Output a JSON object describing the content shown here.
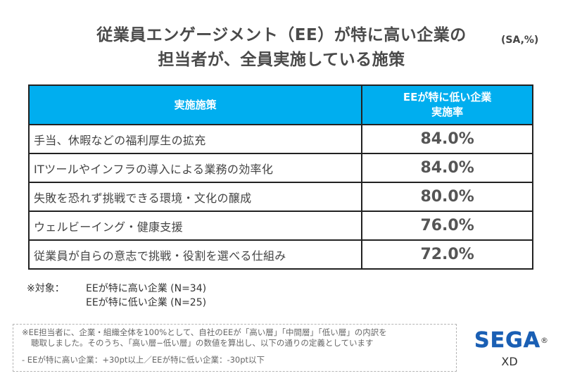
{
  "title": {
    "line1": "従業員エンゲージメント（EE）が特に高い企業の",
    "line2": "担当者が、全員実施している施策"
  },
  "unit_label": "(SA,%)",
  "table": {
    "headers": {
      "measure": "実施施策",
      "rate_line1": "EEが特に低い企業",
      "rate_line2": "実施率"
    },
    "header_color": "#00aeef",
    "rows": [
      {
        "measure": "手当、休暇などの福利厚生の拡充",
        "rate": "84.0%"
      },
      {
        "measure": "ITツールやインフラの導入による業務の効率化",
        "rate": "84.0%"
      },
      {
        "measure": "失敗を恐れず挑戦できる環境・文化の醸成",
        "rate": "80.0%"
      },
      {
        "measure": "ウェルビーイング・健康支援",
        "rate": "76.0%"
      },
      {
        "measure": "従業員が自らの意志で挑戦・役割を選べる仕組み",
        "rate": "72.0%"
      }
    ]
  },
  "targets": {
    "label": "※対象：",
    "items": [
      "EEが特に高い企業 (N=34)",
      "EEが特に低い企業 (N=25)"
    ]
  },
  "note": {
    "line1": "※EE担当者に、企業・組織全体を100%として、自社のEEが「高い層」「中間層」「低い層」の内訳を",
    "line2": "聴取しました。そのうち、「高い層−低い層」の数値を算出し、以下の通りの定義としています",
    "definition": "- EEが特に高い企業：+30pt以上／EEが特に低い企業：-30pt以下"
  },
  "logo": {
    "brand": "SEGA",
    "registered": "®",
    "sub": "XD",
    "color": "#1a5fb4"
  }
}
